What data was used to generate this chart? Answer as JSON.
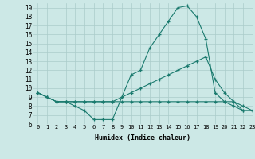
{
  "xlabel": "Humidex (Indice chaleur)",
  "xlim": [
    -0.5,
    23
  ],
  "ylim": [
    6,
    19.5
  ],
  "xticks": [
    0,
    1,
    2,
    3,
    4,
    5,
    6,
    7,
    8,
    9,
    10,
    11,
    12,
    13,
    14,
    15,
    16,
    17,
    18,
    19,
    20,
    21,
    22,
    23
  ],
  "yticks": [
    6,
    7,
    8,
    9,
    10,
    11,
    12,
    13,
    14,
    15,
    16,
    17,
    18,
    19
  ],
  "bg_color": "#cce8e6",
  "grid_color": "#aaccca",
  "line_color": "#1a7a6e",
  "series": [
    {
      "x": [
        0,
        1,
        2,
        3,
        4,
        5,
        6,
        7,
        8,
        9,
        10,
        11,
        12,
        13,
        14,
        15,
        16,
        17,
        18,
        19,
        20,
        21,
        22,
        23
      ],
      "y": [
        9.5,
        9.0,
        8.5,
        8.5,
        8.0,
        7.5,
        6.5,
        6.5,
        6.5,
        9.0,
        11.5,
        12.0,
        14.5,
        16.0,
        17.5,
        19.0,
        19.2,
        18.0,
        15.5,
        9.5,
        8.5,
        8.0,
        7.5,
        7.5
      ]
    },
    {
      "x": [
        0,
        1,
        2,
        3,
        4,
        5,
        6,
        7,
        8,
        9,
        10,
        11,
        12,
        13,
        14,
        15,
        16,
        17,
        18,
        19,
        20,
        21,
        22,
        23
      ],
      "y": [
        9.5,
        9.0,
        8.5,
        8.5,
        8.5,
        8.5,
        8.5,
        8.5,
        8.5,
        9.0,
        9.5,
        10.0,
        10.5,
        11.0,
        11.5,
        12.0,
        12.5,
        13.0,
        13.5,
        11.0,
        9.5,
        8.5,
        7.5,
        7.5
      ]
    },
    {
      "x": [
        0,
        1,
        2,
        3,
        4,
        5,
        6,
        7,
        8,
        9,
        10,
        11,
        12,
        13,
        14,
        15,
        16,
        17,
        18,
        19,
        20,
        21,
        22,
        23
      ],
      "y": [
        9.5,
        9.0,
        8.5,
        8.5,
        8.5,
        8.5,
        8.5,
        8.5,
        8.5,
        8.5,
        8.5,
        8.5,
        8.5,
        8.5,
        8.5,
        8.5,
        8.5,
        8.5,
        8.5,
        8.5,
        8.5,
        8.5,
        8.0,
        7.5
      ]
    }
  ]
}
